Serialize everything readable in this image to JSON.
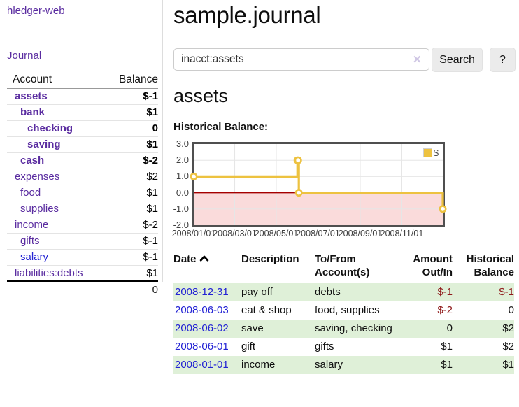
{
  "app": {
    "brand": "hledger-web",
    "nav_journal": "Journal"
  },
  "sidebar": {
    "account_header": "Account",
    "balance_header": "Balance",
    "accounts": [
      {
        "name": "assets",
        "balance": "$-1"
      },
      {
        "name": "bank",
        "balance": "$1"
      },
      {
        "name": "checking",
        "balance": "0"
      },
      {
        "name": "saving",
        "balance": "$1"
      },
      {
        "name": "cash",
        "balance": "$-2"
      },
      {
        "name": "expenses",
        "balance": "$2"
      },
      {
        "name": "food",
        "balance": "$1"
      },
      {
        "name": "supplies",
        "balance": "$1"
      },
      {
        "name": "income",
        "balance": "$-2"
      },
      {
        "name": "gifts",
        "balance": "$-1"
      },
      {
        "name": "salary",
        "balance": "$-1"
      },
      {
        "name": "liabilities:debts",
        "balance": "$1"
      }
    ],
    "total": "0"
  },
  "main": {
    "title": "sample.journal",
    "search": {
      "value": "inacct:assets",
      "clear": "✕",
      "button": "Search",
      "help": "?"
    },
    "section_title": "assets",
    "chart_label": "Historical Balance:"
  },
  "chart_data": {
    "type": "line",
    "style": "step",
    "title": "Historical Balance",
    "legend": "$",
    "xlim": [
      "2008-01-01",
      "2008-12-31"
    ],
    "ylim": [
      -2,
      3
    ],
    "points": [
      {
        "date": "2008-01-01",
        "value": 1
      },
      {
        "date": "2008-06-01",
        "value": 2
      },
      {
        "date": "2008-06-02",
        "value": 2
      },
      {
        "date": "2008-06-03",
        "value": 0
      },
      {
        "date": "2008-12-31",
        "value": -1
      }
    ],
    "y_ticks": [
      "3.0",
      "2.0",
      "1.0",
      "0.0",
      "-1.0",
      "-2.0"
    ],
    "x_ticks": [
      "2008/01/01",
      "2008/03/01",
      "2008/05/01",
      "2008/07/01",
      "2008/09/01",
      "2008/11/01"
    ],
    "colors": {
      "line": "#edc240",
      "marker_fill": "#ffffff",
      "negative_region": "#fadbdb",
      "zero_line": "#a40000",
      "grid": "#e6e6e6"
    }
  },
  "register": {
    "headers": {
      "date": "Date",
      "description": "Description",
      "accounts": "To/From Account(s)",
      "amount": "Amount Out/In",
      "balance": "Historical Balance"
    },
    "rows": [
      {
        "date": "2008-12-31",
        "description": "pay off",
        "accounts": "debts",
        "amount": "$-1",
        "balance": "$-1"
      },
      {
        "date": "2008-06-03",
        "description": "eat & shop",
        "accounts": "food, supplies",
        "amount": "$-2",
        "balance": "0"
      },
      {
        "date": "2008-06-02",
        "description": "save",
        "accounts": "saving, checking",
        "amount": "0",
        "balance": "$2"
      },
      {
        "date": "2008-06-01",
        "description": "gift",
        "accounts": "gifts",
        "amount": "$1",
        "balance": "$2"
      },
      {
        "date": "2008-01-01",
        "description": "income",
        "accounts": "salary",
        "amount": "$1",
        "balance": "$1"
      }
    ]
  }
}
